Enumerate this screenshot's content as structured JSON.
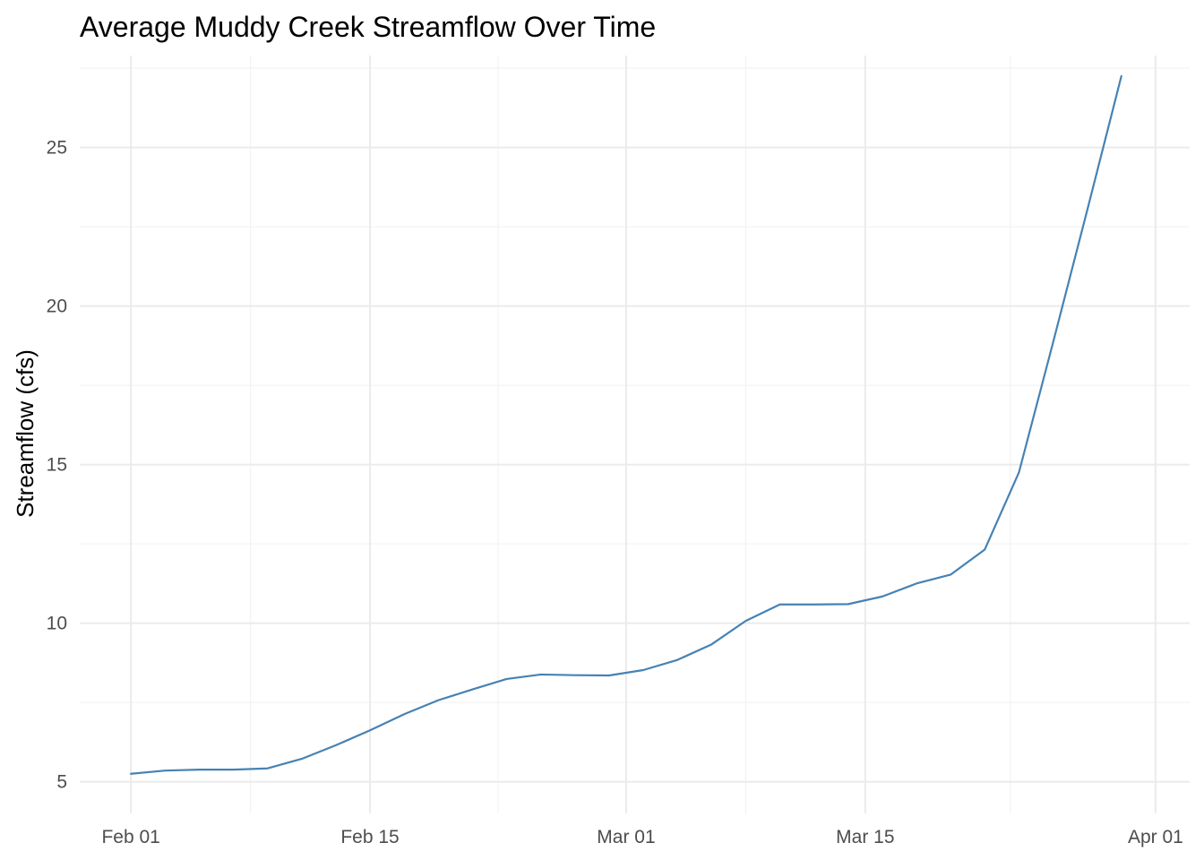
{
  "chart_data": {
    "type": "line",
    "title": "Average Muddy Creek Streamflow Over Time",
    "xlabel": "",
    "ylabel": "Streamflow (cfs)",
    "x_ticks": [
      "Feb 01",
      "Feb 15",
      "Mar 01",
      "Mar 15",
      "Apr 01"
    ],
    "y_ticks": [
      "5",
      "10",
      "15",
      "20",
      "25"
    ],
    "xlim": [
      "2024-01-29",
      "2024-04-03"
    ],
    "ylim": [
      4.0,
      27.9
    ],
    "grid": true,
    "legend": "none",
    "line_color": "#4682b4",
    "series": [
      {
        "x": [
          "2024-02-01",
          "2024-02-03",
          "2024-02-05",
          "2024-02-07",
          "2024-02-09",
          "2024-02-11",
          "2024-02-13",
          "2024-02-15",
          "2024-02-17",
          "2024-02-19",
          "2024-02-21",
          "2024-02-23",
          "2024-02-25",
          "2024-02-27",
          "2024-02-29",
          "2024-03-02",
          "2024-03-04",
          "2024-03-06",
          "2024-03-08",
          "2024-03-10",
          "2024-03-12",
          "2024-03-14",
          "2024-03-16",
          "2024-03-18",
          "2024-03-20",
          "2024-03-22",
          "2024-03-24",
          "2024-03-26",
          "2024-03-28",
          "2024-03-30"
        ],
        "values": [
          5.25,
          5.35,
          5.38,
          5.38,
          5.42,
          5.72,
          6.15,
          6.62,
          7.13,
          7.57,
          7.91,
          8.24,
          8.38,
          8.36,
          8.35,
          8.52,
          8.84,
          9.33,
          10.07,
          10.59,
          10.59,
          10.6,
          10.84,
          11.25,
          11.53,
          12.32,
          14.75,
          18.85,
          23.02,
          27.25
        ]
      }
    ]
  }
}
